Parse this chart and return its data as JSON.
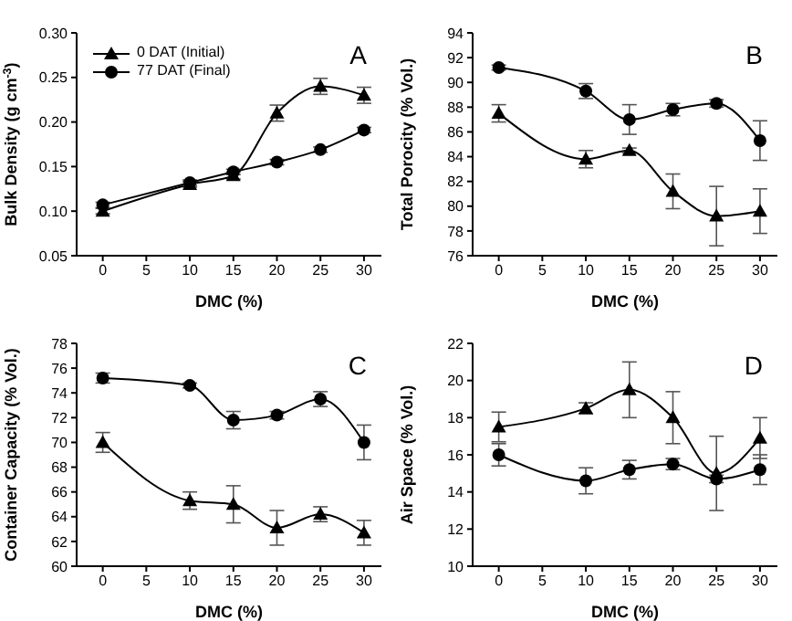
{
  "chart_data": [
    {
      "type": "line",
      "ylabel": "Bulk Density (g cm$^{-3}$)",
      "xlabel": "DMC (%)",
      "x": [
        0,
        10,
        15,
        20,
        25,
        30
      ],
      "xlim": [
        -3,
        32
      ],
      "xticks": [
        0,
        5,
        10,
        15,
        20,
        25,
        30
      ],
      "ylim": [
        0.05,
        0.3
      ],
      "yticks": [
        {
          "value": 0.05,
          "label": "0.05"
        },
        {
          "value": 0.1,
          "label": "0.10"
        },
        {
          "value": 0.15,
          "label": "0.15"
        },
        {
          "value": 0.2,
          "label": "0.20"
        },
        {
          "value": 0.25,
          "label": "0.25"
        },
        {
          "value": 0.3,
          "label": "0.30"
        }
      ],
      "legend": "top left",
      "grid": false,
      "annotations": [
        "A"
      ],
      "series": [
        {
          "name": "0 DAT (Initial)",
          "color": "#000000",
          "marker": "triangle",
          "values": [
            0.1,
            0.13,
            0.14,
            0.21,
            0.24,
            0.23
          ],
          "errors": [
            0.003,
            0.003,
            0.004,
            0.009,
            0.009,
            0.009
          ]
        },
        {
          "name": "77 DAT (Final)",
          "color": "#000000",
          "marker": "circle",
          "values": [
            0.107,
            0.132,
            0.144,
            0.155,
            0.169,
            0.191
          ],
          "errors": [
            0.003,
            0.003,
            0.003,
            0.003,
            0.003,
            0.003
          ]
        }
      ]
    },
    {
      "type": "line",
      "ylabel": "Total Porocity (% Vol.)",
      "xlabel": "DMC (%)",
      "x": [
        0,
        10,
        15,
        20,
        25,
        30
      ],
      "xlim": [
        -3,
        32
      ],
      "xticks": [
        0,
        5,
        10,
        15,
        20,
        25,
        30
      ],
      "ylim": [
        76,
        94
      ],
      "yticks": [
        76,
        78,
        80,
        82,
        84,
        86,
        88,
        90,
        92,
        94
      ],
      "grid": false,
      "annotations": [
        "B"
      ],
      "series": [
        {
          "color": "#000000",
          "marker": "triangle",
          "values": [
            87.5,
            83.8,
            84.5,
            81.2,
            79.2,
            79.6
          ],
          "errors": [
            0.7,
            0.7,
            0.2,
            1.4,
            2.4,
            1.8
          ]
        },
        {
          "color": "#000000",
          "marker": "circle",
          "values": [
            91.2,
            89.3,
            87.0,
            87.8,
            88.3,
            85.3
          ],
          "errors": [
            0.2,
            0.6,
            1.2,
            0.5,
            0.3,
            1.6
          ]
        }
      ]
    },
    {
      "type": "line",
      "ylabel": "Container Capacity (% Vol.)",
      "xlabel": "DMC (%)",
      "x": [
        0,
        10,
        15,
        20,
        25,
        30
      ],
      "xlim": [
        -3,
        32
      ],
      "xticks": [
        0,
        5,
        10,
        15,
        20,
        25,
        30
      ],
      "ylim": [
        60,
        78
      ],
      "yticks": [
        60,
        62,
        64,
        66,
        68,
        70,
        72,
        74,
        76,
        78
      ],
      "grid": false,
      "annotations": [
        "C"
      ],
      "series": [
        {
          "color": "#000000",
          "marker": "triangle",
          "values": [
            70.0,
            65.3,
            65.0,
            63.1,
            64.2,
            62.7
          ],
          "errors": [
            0.8,
            0.7,
            1.5,
            1.4,
            0.6,
            1.0
          ]
        },
        {
          "color": "#000000",
          "marker": "circle",
          "values": [
            75.2,
            74.6,
            71.8,
            72.2,
            73.5,
            70.0
          ],
          "errors": [
            0.4,
            0.2,
            0.7,
            0.3,
            0.6,
            1.4
          ]
        }
      ]
    },
    {
      "type": "line",
      "ylabel": "Air Space (% Vol.)",
      "xlabel": "DMC (%)",
      "x": [
        0,
        10,
        15,
        20,
        25,
        30
      ],
      "xlim": [
        -3,
        32
      ],
      "xticks": [
        0,
        5,
        10,
        15,
        20,
        25,
        30
      ],
      "ylim": [
        10,
        22
      ],
      "yticks": [
        10,
        12,
        14,
        16,
        18,
        20,
        22
      ],
      "grid": false,
      "annotations": [
        "D"
      ],
      "series": [
        {
          "color": "#000000",
          "marker": "triangle",
          "values": [
            17.5,
            18.5,
            19.5,
            18.0,
            15.0,
            16.9
          ],
          "errors": [
            0.8,
            0.3,
            1.5,
            1.4,
            2.0,
            1.1
          ]
        },
        {
          "color": "#000000",
          "marker": "circle",
          "values": [
            16.0,
            14.6,
            15.2,
            15.5,
            14.7,
            15.2
          ],
          "errors": [
            0.6,
            0.7,
            0.5,
            0.3,
            0.2,
            0.8
          ]
        }
      ]
    }
  ]
}
